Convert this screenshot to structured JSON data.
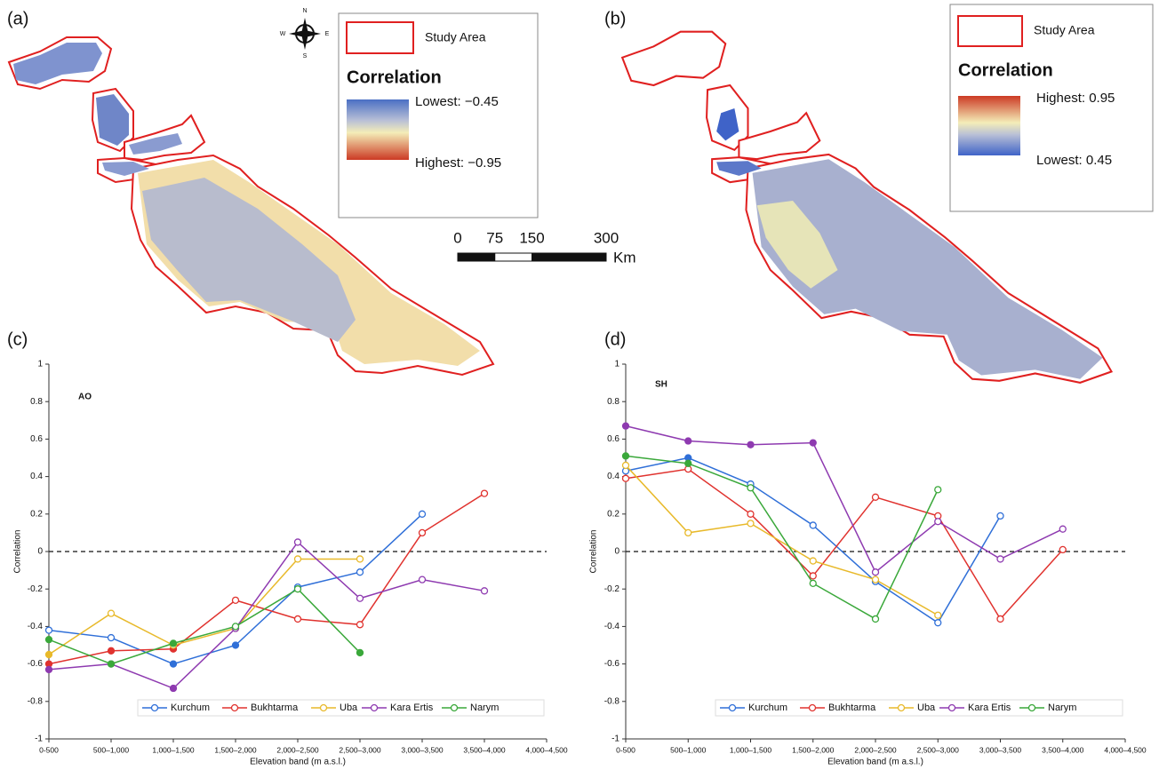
{
  "panel_labels": [
    "(a)",
    "(b)",
    "(c)",
    "(d)"
  ],
  "compass": [
    "N",
    "S",
    "W",
    "E"
  ],
  "scale_bar": {
    "ticks": [
      0,
      75,
      150,
      300
    ],
    "unit": "Km"
  },
  "maps": [
    {
      "legend_box": "Study Area",
      "legend_title": "Correlation",
      "legend_top": "Lowest: −0.45",
      "legend_bottom": "Highest: −0.95"
    },
    {
      "legend_box": "Study Area",
      "legend_title": "Correlation",
      "legend_top": "Highest: 0.95",
      "legend_bottom": "Lowest: 0.45"
    }
  ],
  "chart_data": [
    {
      "type": "line",
      "annotation": "AO",
      "xlabel": "Elevation band (m a.s.l.)",
      "ylabel": "Correlation",
      "categories": [
        "0-500",
        "500–1,000",
        "1,000–1,500",
        "1,500–2,000",
        "2,000–2,500",
        "2,500–3,000",
        "3,000–3,500",
        "3,500–4,000",
        "4,000–4,500"
      ],
      "ylim": [
        -1,
        1
      ],
      "yticks": [
        1,
        0.8,
        0.6,
        0.4,
        0.2,
        0,
        -0.2,
        -0.4,
        -0.6,
        -0.8,
        -1
      ],
      "reference_line": 0,
      "series": [
        {
          "name": "Kurchum",
          "color": "#2f6fd8",
          "values": [
            -0.42,
            -0.46,
            -0.6,
            -0.5,
            -0.19,
            -0.11,
            0.2,
            null,
            null
          ],
          "filled": [
            false,
            false,
            true,
            true,
            false,
            false,
            false,
            false,
            false
          ]
        },
        {
          "name": "Bukhtarma",
          "color": "#e0322e",
          "values": [
            -0.6,
            -0.53,
            -0.52,
            -0.26,
            -0.36,
            -0.39,
            0.1,
            0.31,
            null
          ],
          "filled": [
            true,
            true,
            true,
            false,
            false,
            false,
            false,
            false,
            false
          ]
        },
        {
          "name": "Uba",
          "color": "#e8b92a",
          "values": [
            -0.55,
            -0.33,
            -0.5,
            -0.41,
            -0.04,
            -0.04,
            null,
            null,
            null
          ],
          "filled": [
            true,
            false,
            false,
            false,
            false,
            false,
            false,
            false,
            false
          ]
        },
        {
          "name": "Kara Ertis",
          "color": "#8e3ab0",
          "values": [
            -0.63,
            -0.6,
            -0.73,
            -0.41,
            0.05,
            -0.25,
            -0.15,
            -0.21,
            null
          ],
          "filled": [
            true,
            false,
            true,
            false,
            false,
            false,
            false,
            false,
            false
          ]
        },
        {
          "name": "Narym",
          "color": "#3aa83a",
          "values": [
            -0.47,
            -0.6,
            -0.49,
            -0.4,
            -0.2,
            -0.54,
            null,
            null,
            null
          ],
          "filled": [
            true,
            true,
            true,
            false,
            false,
            true,
            false,
            false,
            false
          ]
        }
      ]
    },
    {
      "type": "line",
      "annotation": "SH",
      "xlabel": "Elevation band (m a.s.l.)",
      "ylabel": "Correlation",
      "categories": [
        "0-500",
        "500–1,000",
        "1,000–1,500",
        "1,500–2,000",
        "2,000–2,500",
        "2,500–3,000",
        "3,000–3,500",
        "3,500–4,000",
        "4,000–4,500"
      ],
      "ylim": [
        -1,
        1
      ],
      "yticks": [
        1,
        0.8,
        0.6,
        0.4,
        0.2,
        0,
        -0.2,
        -0.4,
        -0.6,
        -0.8,
        -1
      ],
      "reference_line": 0,
      "series": [
        {
          "name": "Kurchum",
          "color": "#2f6fd8",
          "values": [
            0.43,
            0.5,
            0.36,
            0.14,
            -0.16,
            -0.38,
            0.19,
            null,
            null
          ],
          "filled": [
            false,
            true,
            false,
            false,
            false,
            false,
            false,
            false,
            false
          ]
        },
        {
          "name": "Bukhtarma",
          "color": "#e0322e",
          "values": [
            0.39,
            0.44,
            0.2,
            -0.13,
            0.29,
            0.19,
            -0.36,
            0.01,
            null
          ],
          "filled": [
            false,
            false,
            false,
            false,
            false,
            false,
            false,
            false,
            false
          ]
        },
        {
          "name": "Uba",
          "color": "#e8b92a",
          "values": [
            0.46,
            0.1,
            0.15,
            -0.05,
            -0.15,
            -0.34,
            null,
            null,
            null
          ],
          "filled": [
            false,
            false,
            false,
            false,
            false,
            false,
            false,
            false,
            false
          ]
        },
        {
          "name": "Kara Ertis",
          "color": "#8e3ab0",
          "values": [
            0.67,
            0.59,
            0.57,
            0.58,
            -0.11,
            0.16,
            -0.04,
            0.12,
            null
          ],
          "filled": [
            true,
            true,
            true,
            true,
            false,
            false,
            false,
            false,
            false
          ]
        },
        {
          "name": "Narym",
          "color": "#3aa83a",
          "values": [
            0.51,
            0.47,
            0.34,
            -0.17,
            -0.36,
            0.33,
            null,
            null,
            null
          ],
          "filled": [
            true,
            true,
            false,
            false,
            false,
            false,
            false,
            false,
            false
          ]
        }
      ]
    }
  ]
}
